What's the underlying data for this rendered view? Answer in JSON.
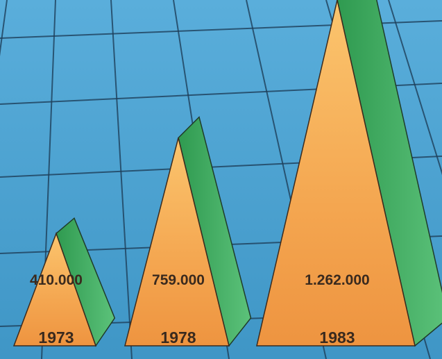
{
  "chart_data": {
    "type": "bar",
    "bar_shape": "pyramid",
    "categories": [
      "1973",
      "1978",
      "1983"
    ],
    "values": [
      410000,
      759000,
      1262000
    ],
    "value_labels": [
      "410.000",
      "759.000",
      "1.262.000"
    ],
    "colors": {
      "front": "#f2a24a",
      "front_light": "#fbc56e",
      "side": "#3aa55a",
      "side_light": "#5cc27a",
      "background": "#4fa3cf",
      "grid": "#1e3f5a",
      "label": "#3a2a1e"
    },
    "grid": true,
    "legend": "none",
    "title": "",
    "xlabel": "",
    "ylabel": ""
  }
}
